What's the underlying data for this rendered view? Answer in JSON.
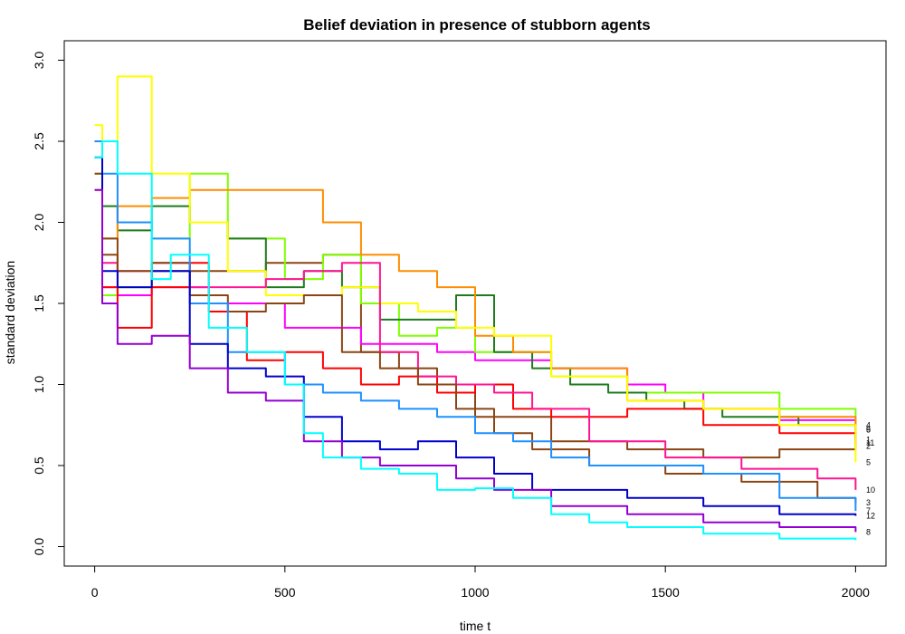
{
  "chart_data": {
    "type": "line",
    "title": "Belief deviation in presence of stubborn agents",
    "xlabel": "time t",
    "ylabel": "standard deviation",
    "xlim": [
      -80,
      2080
    ],
    "ylim": [
      -0.12,
      3.12
    ],
    "xticks": [
      0,
      500,
      1000,
      1500,
      2000
    ],
    "yticks": [
      0.0,
      0.5,
      1.0,
      1.5,
      2.0,
      2.5,
      3.0
    ],
    "xtick_labels": [
      "0",
      "500",
      "1000",
      "1500",
      "2000"
    ],
    "ytick_labels": [
      "0.0",
      "0.5",
      "1.0",
      "1.5",
      "2.0",
      "2.5",
      "3.0"
    ],
    "grid": false,
    "legend": "none",
    "series": [
      {
        "name": "4",
        "color": "#8B4513",
        "x": [
          0,
          20,
          60,
          150,
          300,
          450,
          600,
          700,
          800,
          900,
          1000,
          1200,
          1400,
          1600,
          1800,
          2000
        ],
        "y": [
          2.5,
          1.8,
          1.6,
          1.7,
          1.7,
          1.75,
          1.8,
          1.2,
          1.1,
          1.0,
          0.8,
          0.65,
          0.6,
          0.55,
          0.6,
          0.75
        ]
      },
      {
        "name": "6",
        "color": "#FF00FF",
        "x": [
          0,
          20,
          60,
          150,
          300,
          500,
          700,
          900,
          1000,
          1200,
          1400,
          1500,
          1600,
          1800,
          2000
        ],
        "y": [
          2.4,
          1.6,
          1.55,
          1.6,
          1.5,
          1.35,
          1.25,
          1.2,
          1.15,
          1.1,
          1.0,
          0.95,
          0.85,
          0.78,
          0.72
        ]
      },
      {
        "name": "9",
        "color": "#7FFF00",
        "x": [
          0,
          20,
          60,
          150,
          250,
          350,
          500,
          600,
          700,
          800,
          900,
          1000,
          1200,
          1400,
          1600,
          1800,
          2000
        ],
        "y": [
          2.3,
          1.55,
          1.6,
          1.9,
          2.3,
          1.9,
          1.65,
          1.8,
          1.5,
          1.3,
          1.35,
          1.2,
          1.05,
          0.95,
          0.95,
          0.85,
          0.72
        ]
      },
      {
        "name": "1",
        "color": "#1E7B1E",
        "x": [
          0,
          20,
          60,
          150,
          250,
          350,
          450,
          550,
          650,
          750,
          850,
          950,
          1050,
          1150,
          1250,
          1350,
          1450,
          1550,
          1650,
          1750,
          1850,
          2000
        ],
        "y": [
          2.5,
          2.1,
          1.95,
          2.1,
          2.0,
          1.9,
          1.6,
          1.7,
          1.6,
          1.4,
          1.4,
          1.55,
          1.2,
          1.1,
          1.0,
          0.95,
          0.9,
          0.85,
          0.8,
          0.8,
          0.75,
          0.66
        ]
      },
      {
        "name": "11",
        "color": "#FF8C00",
        "x": [
          0,
          20,
          60,
          150,
          250,
          350,
          500,
          600,
          700,
          800,
          900,
          1000,
          1100,
          1200,
          1400,
          1600,
          1800,
          2000
        ],
        "y": [
          2.2,
          1.9,
          2.1,
          2.15,
          2.2,
          2.2,
          2.2,
          2.0,
          1.8,
          1.7,
          1.6,
          1.3,
          1.2,
          1.1,
          0.9,
          0.85,
          0.8,
          0.64
        ]
      },
      {
        "name": "2",
        "color": "#FF0000",
        "x": [
          0,
          20,
          60,
          150,
          250,
          300,
          400,
          500,
          600,
          700,
          800,
          900,
          1000,
          1100,
          1200,
          1400,
          1600,
          1800,
          2000
        ],
        "y": [
          2.5,
          1.6,
          1.35,
          1.6,
          1.75,
          1.45,
          1.15,
          1.2,
          1.1,
          1.0,
          1.05,
          0.95,
          1.0,
          0.85,
          0.8,
          0.85,
          0.75,
          0.7,
          0.62
        ]
      },
      {
        "name": "5",
        "color": "#FFFF00",
        "x": [
          0,
          20,
          60,
          150,
          250,
          350,
          450,
          550,
          650,
          750,
          850,
          950,
          1050,
          1200,
          1400,
          1600,
          1800,
          2000
        ],
        "y": [
          2.6,
          2.5,
          2.9,
          2.3,
          2.0,
          1.7,
          1.55,
          1.55,
          1.6,
          1.5,
          1.45,
          1.35,
          1.3,
          1.05,
          0.9,
          0.85,
          0.75,
          0.52
        ]
      },
      {
        "name": "10",
        "color": "#FF1493",
        "x": [
          0,
          20,
          60,
          150,
          250,
          350,
          450,
          550,
          650,
          750,
          850,
          950,
          1050,
          1150,
          1300,
          1500,
          1700,
          1900,
          2000
        ],
        "y": [
          2.4,
          1.75,
          1.7,
          1.75,
          1.6,
          1.6,
          1.65,
          1.7,
          1.75,
          1.2,
          1.05,
          1.0,
          0.95,
          0.85,
          0.65,
          0.55,
          0.48,
          0.42,
          0.35
        ]
      },
      {
        "name": "3",
        "color": "#8B4513",
        "x": [
          0,
          20,
          60,
          150,
          250,
          350,
          450,
          550,
          650,
          750,
          850,
          950,
          1050,
          1150,
          1300,
          1500,
          1700,
          1900,
          2000
        ],
        "y": [
          2.3,
          1.9,
          1.7,
          1.75,
          1.55,
          1.45,
          1.5,
          1.55,
          1.2,
          1.1,
          1.0,
          0.85,
          0.7,
          0.6,
          0.5,
          0.45,
          0.4,
          0.3,
          0.27
        ]
      },
      {
        "name": "7",
        "color": "#1E90FF",
        "x": [
          0,
          20,
          60,
          150,
          250,
          350,
          500,
          600,
          700,
          800,
          900,
          1000,
          1100,
          1200,
          1300,
          1400,
          1600,
          1800,
          2000
        ],
        "y": [
          2.5,
          2.3,
          2.0,
          1.9,
          1.5,
          1.2,
          1.0,
          0.95,
          0.9,
          0.85,
          0.8,
          0.7,
          0.65,
          0.55,
          0.5,
          0.5,
          0.45,
          0.3,
          0.22
        ]
      },
      {
        "name": "12",
        "color": "#0000CD",
        "x": [
          0,
          20,
          60,
          150,
          250,
          350,
          450,
          550,
          650,
          750,
          850,
          950,
          1050,
          1150,
          1250,
          1400,
          1600,
          1800,
          2000
        ],
        "y": [
          2.4,
          1.7,
          1.6,
          1.7,
          1.25,
          1.1,
          1.05,
          0.8,
          0.65,
          0.6,
          0.65,
          0.55,
          0.45,
          0.35,
          0.35,
          0.3,
          0.25,
          0.2,
          0.19
        ]
      },
      {
        "name": "8",
        "color": "#9400D3",
        "x": [
          0,
          20,
          60,
          150,
          250,
          350,
          450,
          550,
          650,
          750,
          850,
          950,
          1050,
          1200,
          1400,
          1600,
          1800,
          2000
        ],
        "y": [
          2.2,
          1.5,
          1.25,
          1.3,
          1.1,
          0.95,
          0.9,
          0.65,
          0.55,
          0.5,
          0.5,
          0.42,
          0.35,
          0.25,
          0.2,
          0.15,
          0.12,
          0.09
        ]
      },
      {
        "name": "",
        "color": "#00FFFF",
        "x": [
          0,
          20,
          60,
          150,
          200,
          300,
          400,
          500,
          550,
          600,
          700,
          800,
          900,
          1000,
          1100,
          1200,
          1300,
          1400,
          1600,
          1800,
          2000
        ],
        "y": [
          2.4,
          2.5,
          2.3,
          1.65,
          1.8,
          1.35,
          1.2,
          1.0,
          0.7,
          0.55,
          0.48,
          0.45,
          0.35,
          0.36,
          0.3,
          0.2,
          0.15,
          0.12,
          0.08,
          0.05,
          0.04
        ]
      }
    ]
  }
}
